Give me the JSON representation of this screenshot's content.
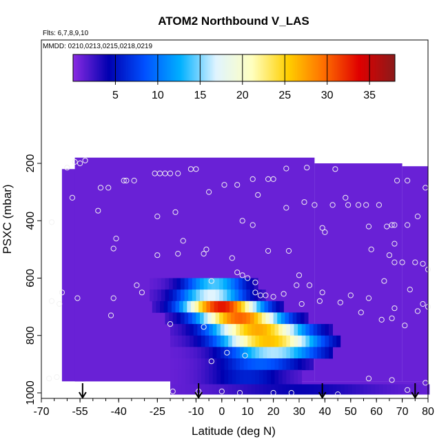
{
  "chart_data": {
    "type": "heatmap",
    "title": "ATOM2 Northbound V_LAS",
    "annotations": {
      "flights": "Flts: 6,7,8,9,10",
      "dates": "MMDD: 0210,0213,0215,0218,0219"
    },
    "xlabel": "Latitude (deg N)",
    "ylabel": "PSXC (mbar)",
    "xlim": [
      -70,
      80
    ],
    "ylim": [
      1000,
      0
    ],
    "x_ticks": [
      -70,
      -55,
      -40,
      -25,
      -10,
      0,
      10,
      20,
      30,
      40,
      50,
      60,
      70,
      80
    ],
    "x_tick_labels": [
      "-70",
      "-55",
      "-40",
      "-25",
      "-10",
      "0",
      "10",
      "20",
      "30",
      "40",
      "50",
      "60",
      "70",
      "80"
    ],
    "y_ticks": [
      200,
      400,
      600,
      800,
      1000
    ],
    "y_tick_labels": [
      "200",
      "400",
      "600",
      "800",
      "1000"
    ],
    "colorbar": {
      "min": 0,
      "max": 38,
      "ticks": [
        5,
        10,
        15,
        20,
        25,
        30,
        35
      ],
      "tick_labels": [
        "5",
        "10",
        "15",
        "20",
        "25",
        "30",
        "35"
      ],
      "colors": [
        "#8a2be2",
        "#0000b0",
        "#0050ff",
        "#00b0ff",
        "#e0f4ff",
        "#ffffc0",
        "#ffd000",
        "#ff7000",
        "#e00000",
        "#8b1a1a"
      ]
    },
    "background_value": 1,
    "plume_bands": [
      {
        "lat_min": -28,
        "lat_max": 13,
        "p_min": 600,
        "p_max": 640,
        "lat_peak": -3,
        "peak": 14
      },
      {
        "lat_min": -28,
        "lat_max": 17,
        "p_min": 640,
        "p_max": 680,
        "lat_peak": -4,
        "peak": 17
      },
      {
        "lat_min": -27,
        "lat_max": 23,
        "p_min": 680,
        "p_max": 720,
        "lat_peak": 0,
        "peak": 33
      },
      {
        "lat_min": -22,
        "lat_max": 33,
        "p_min": 720,
        "p_max": 760,
        "lat_peak": 7,
        "peak": 30
      },
      {
        "lat_min": -20,
        "lat_max": 42,
        "p_min": 760,
        "p_max": 800,
        "lat_peak": 14,
        "peak": 27
      },
      {
        "lat_min": -20,
        "lat_max": 45,
        "p_min": 800,
        "p_max": 840,
        "lat_peak": 18,
        "peak": 26
      },
      {
        "lat_min": -20,
        "lat_max": 42,
        "p_min": 840,
        "p_max": 880,
        "lat_peak": 20,
        "peak": 16
      },
      {
        "lat_min": -20,
        "lat_max": 35,
        "p_min": 880,
        "p_max": 920,
        "lat_peak": 15,
        "peak": 9
      },
      {
        "lat_min": -20,
        "lat_max": 30,
        "p_min": 920,
        "p_max": 970,
        "lat_peak": 10,
        "peak": 6
      },
      {
        "lat_min": -20,
        "lat_max": 80,
        "p_min": 970,
        "p_max": 1005,
        "lat_peak": 30,
        "peak": 4
      }
    ],
    "sample_points": [
      {
        "lat": -57,
        "p": 195
      },
      {
        "lat": -53,
        "p": 190
      },
      {
        "lat": -60,
        "p": 215
      },
      {
        "lat": -55,
        "p": 200
      },
      {
        "lat": -47,
        "p": 285
      },
      {
        "lat": -44,
        "p": 285
      },
      {
        "lat": -58,
        "p": 320
      },
      {
        "lat": -48,
        "p": 365
      },
      {
        "lat": -38,
        "p": 260
      },
      {
        "lat": -37,
        "p": 260
      },
      {
        "lat": -34,
        "p": 260
      },
      {
        "lat": -26,
        "p": 235
      },
      {
        "lat": -24,
        "p": 235
      },
      {
        "lat": -22,
        "p": 235
      },
      {
        "lat": -20,
        "p": 235
      },
      {
        "lat": -17,
        "p": 235
      },
      {
        "lat": -12,
        "p": 220
      },
      {
        "lat": -10,
        "p": 220
      },
      {
        "lat": -66,
        "p": 405
      },
      {
        "lat": -25,
        "p": 385
      },
      {
        "lat": -18,
        "p": 370
      },
      {
        "lat": -15,
        "p": 470
      },
      {
        "lat": -41,
        "p": 462
      },
      {
        "lat": -42,
        "p": 497
      },
      {
        "lat": -25,
        "p": 520
      },
      {
        "lat": -17,
        "p": 515
      },
      {
        "lat": -7,
        "p": 515
      },
      {
        "lat": -6,
        "p": 500
      },
      {
        "lat": -5,
        "p": 300
      },
      {
        "lat": 1,
        "p": 275
      },
      {
        "lat": 6,
        "p": 275
      },
      {
        "lat": 12,
        "p": 255
      },
      {
        "lat": 14,
        "p": 310
      },
      {
        "lat": 18,
        "p": 255
      },
      {
        "lat": 20,
        "p": 255
      },
      {
        "lat": 25,
        "p": 218
      },
      {
        "lat": 33,
        "p": 215
      },
      {
        "lat": 8,
        "p": 400
      },
      {
        "lat": 12,
        "p": 415
      },
      {
        "lat": 4,
        "p": 530
      },
      {
        "lat": 6,
        "p": 580
      },
      {
        "lat": 8,
        "p": 590
      },
      {
        "lat": 10,
        "p": 600
      },
      {
        "lat": 13,
        "p": 615
      },
      {
        "lat": 13,
        "p": 650
      },
      {
        "lat": 18,
        "p": 505
      },
      {
        "lat": 26,
        "p": 505
      },
      {
        "lat": 25,
        "p": 355
      },
      {
        "lat": 32,
        "p": 335
      },
      {
        "lat": 36,
        "p": 345
      },
      {
        "lat": 39,
        "p": 425
      },
      {
        "lat": 40,
        "p": 440
      },
      {
        "lat": 43,
        "p": 345
      },
      {
        "lat": 48,
        "p": 320
      },
      {
        "lat": 49,
        "p": 345
      },
      {
        "lat": 53,
        "p": 345
      },
      {
        "lat": 56,
        "p": 345
      },
      {
        "lat": 57,
        "p": 420
      },
      {
        "lat": 61,
        "p": 345
      },
      {
        "lat": 58,
        "p": 500
      },
      {
        "lat": 64,
        "p": 420
      },
      {
        "lat": 66,
        "p": 415
      },
      {
        "lat": 67,
        "p": 415
      },
      {
        "lat": 67,
        "p": 480
      },
      {
        "lat": 65,
        "p": 520
      },
      {
        "lat": 67,
        "p": 545
      },
      {
        "lat": 70,
        "p": 545
      },
      {
        "lat": 75,
        "p": 545
      },
      {
        "lat": 78,
        "p": 550
      },
      {
        "lat": 80,
        "p": 570
      },
      {
        "lat": 72,
        "p": 415
      },
      {
        "lat": 76,
        "p": 385
      },
      {
        "lat": 68,
        "p": 260
      },
      {
        "lat": 72,
        "p": 260
      },
      {
        "lat": 79,
        "p": 285
      },
      {
        "lat": 44,
        "p": 220
      },
      {
        "lat": 29,
        "p": 625
      },
      {
        "lat": 34,
        "p": 625
      },
      {
        "lat": 30,
        "p": 590
      },
      {
        "lat": 24,
        "p": 655
      },
      {
        "lat": 31,
        "p": 690
      },
      {
        "lat": 38,
        "p": 680
      },
      {
        "lat": 39,
        "p": 650
      },
      {
        "lat": 46,
        "p": 685
      },
      {
        "lat": 50,
        "p": 660
      },
      {
        "lat": 54,
        "p": 720
      },
      {
        "lat": 57,
        "p": 670
      },
      {
        "lat": 62,
        "p": 745
      },
      {
        "lat": 66,
        "p": 740
      },
      {
        "lat": 67,
        "p": 705
      },
      {
        "lat": 71,
        "p": 765
      },
      {
        "lat": 76,
        "p": 715
      },
      {
        "lat": 78,
        "p": 690
      },
      {
        "lat": 80,
        "p": 700
      },
      {
        "lat": 63,
        "p": 610
      },
      {
        "lat": 73,
        "p": 640
      },
      {
        "lat": -66,
        "p": 680
      },
      {
        "lat": -63,
        "p": 690
      },
      {
        "lat": -62,
        "p": 650
      },
      {
        "lat": -56,
        "p": 670
      },
      {
        "lat": -42,
        "p": 670
      },
      {
        "lat": -43,
        "p": 730
      },
      {
        "lat": -33,
        "p": 625
      },
      {
        "lat": -31,
        "p": 650
      },
      {
        "lat": -20,
        "p": 760
      },
      {
        "lat": -7,
        "p": 770
      },
      {
        "lat": -4,
        "p": 610
      },
      {
        "lat": 2,
        "p": 860
      },
      {
        "lat": -4,
        "p": 890
      },
      {
        "lat": 9,
        "p": 870
      },
      {
        "lat": 15,
        "p": 660
      },
      {
        "lat": 17,
        "p": 660
      },
      {
        "lat": 20,
        "p": 665
      },
      {
        "lat": -67,
        "p": 950
      },
      {
        "lat": -64,
        "p": 945
      },
      {
        "lat": 57,
        "p": 950
      },
      {
        "lat": 66,
        "p": 955
      },
      {
        "lat": 79,
        "p": 965
      },
      {
        "lat": 72,
        "p": 990
      },
      {
        "lat": -19,
        "p": 995
      },
      {
        "lat": -9,
        "p": 995
      },
      {
        "lat": 0,
        "p": 995
      },
      {
        "lat": 7,
        "p": 1000
      },
      {
        "lat": 20,
        "p": 1000
      },
      {
        "lat": 27,
        "p": 1000
      },
      {
        "lat": 45,
        "p": 1005
      }
    ],
    "arrows": [
      -54,
      -9,
      39,
      75
    ],
    "legend": "top (colorbar)",
    "grid": false
  }
}
